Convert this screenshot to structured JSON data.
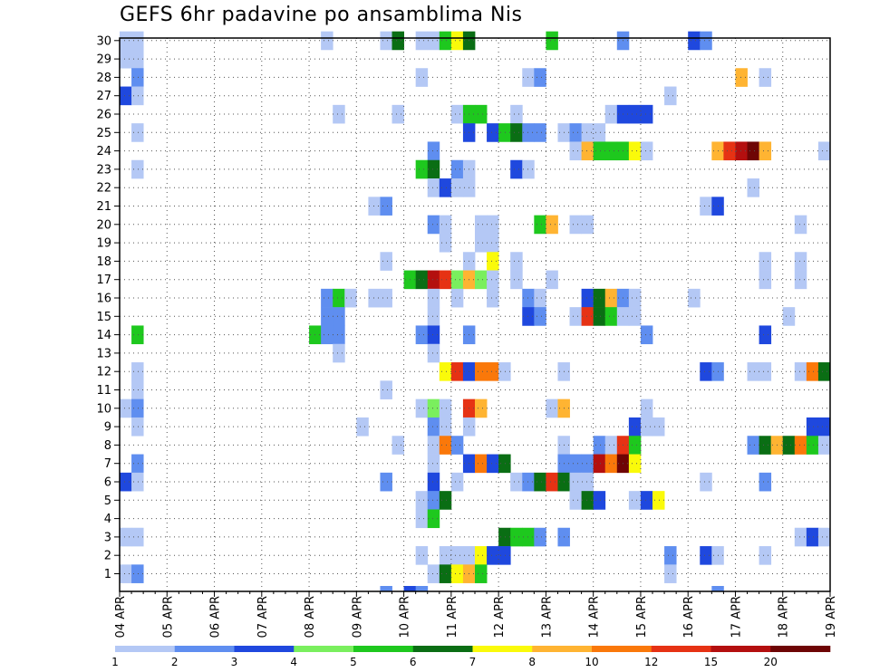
{
  "chart_data": {
    "type": "heatmap",
    "title": "GEFS 6hr padavine po ansamblima Nis",
    "xlabel": "",
    "ylabel": "",
    "members": [
      1,
      30
    ],
    "x_tick_labels": [
      "04 APR",
      "05 APR",
      "06 APR",
      "07 APR",
      "08 APR",
      "09 APR",
      "10 APR",
      "11 APR",
      "12 APR",
      "13 APR",
      "14 APR",
      "15 APR",
      "16 APR",
      "17 APR",
      "18 APR",
      "19 APR"
    ],
    "y_tick_labels": [
      "1",
      "2",
      "3",
      "4",
      "5",
      "6",
      "7",
      "8",
      "9",
      "10",
      "11",
      "12",
      "13",
      "14",
      "15",
      "16",
      "17",
      "18",
      "19",
      "20",
      "21",
      "22",
      "23",
      "24",
      "25",
      "26",
      "27",
      "28",
      "29",
      "30"
    ],
    "steps_per_day": 4,
    "total_steps": 60,
    "legend": {
      "labels": [
        "1",
        "2",
        "3",
        "4",
        "5",
        "6",
        "7",
        "8",
        "10",
        "12",
        "15",
        "20"
      ],
      "colors": [
        "#b4c8f5",
        "#5f8ef0",
        "#1f48de",
        "#7aef5e",
        "#1ec81e",
        "#0a6e14",
        "#fafa0a",
        "#ffb432",
        "#fa780a",
        "#e63214",
        "#b40f0f",
        "#6e0505"
      ]
    },
    "cells": [
      [
        30,
        0,
        1
      ],
      [
        30,
        1,
        1
      ],
      [
        29,
        0,
        1
      ],
      [
        29,
        1,
        1
      ],
      [
        28,
        1,
        2
      ],
      [
        27,
        0,
        3
      ],
      [
        27,
        1,
        1
      ],
      [
        25,
        1,
        1
      ],
      [
        23,
        1,
        1
      ],
      [
        14,
        1,
        5
      ],
      [
        12,
        1,
        1
      ],
      [
        11,
        1,
        1
      ],
      [
        10,
        0,
        1
      ],
      [
        10,
        1,
        2
      ],
      [
        9,
        1,
        1
      ],
      [
        7,
        1,
        2
      ],
      [
        6,
        0,
        3
      ],
      [
        6,
        1,
        1
      ],
      [
        3,
        0,
        1
      ],
      [
        3,
        1,
        1
      ],
      [
        1,
        0,
        1
      ],
      [
        1,
        1,
        2
      ],
      [
        30,
        17,
        1
      ],
      [
        30,
        22,
        1
      ],
      [
        30,
        23,
        6
      ],
      [
        30,
        25,
        1
      ],
      [
        30,
        26,
        1
      ],
      [
        30,
        27,
        5
      ],
      [
        30,
        28,
        7
      ],
      [
        30,
        29,
        6
      ],
      [
        30,
        36,
        5
      ],
      [
        30,
        42,
        2
      ],
      [
        30,
        48,
        3
      ],
      [
        30,
        49,
        2
      ],
      [
        28,
        25,
        1
      ],
      [
        28,
        34,
        1
      ],
      [
        28,
        35,
        2
      ],
      [
        28,
        52,
        8
      ],
      [
        28,
        54,
        1
      ],
      [
        27,
        46,
        1
      ],
      [
        26,
        18,
        1
      ],
      [
        26,
        23,
        1
      ],
      [
        26,
        28,
        1
      ],
      [
        26,
        29,
        5
      ],
      [
        26,
        30,
        5
      ],
      [
        26,
        33,
        1
      ],
      [
        26,
        41,
        1
      ],
      [
        26,
        42,
        3
      ],
      [
        26,
        43,
        3
      ],
      [
        26,
        44,
        3
      ],
      [
        25,
        29,
        3
      ],
      [
        25,
        31,
        3
      ],
      [
        25,
        32,
        5
      ],
      [
        25,
        33,
        6
      ],
      [
        25,
        34,
        2
      ],
      [
        25,
        35,
        2
      ],
      [
        25,
        37,
        1
      ],
      [
        25,
        38,
        2
      ],
      [
        25,
        39,
        1
      ],
      [
        25,
        40,
        1
      ],
      [
        24,
        26,
        2
      ],
      [
        24,
        38,
        1
      ],
      [
        24,
        39,
        8
      ],
      [
        24,
        40,
        5
      ],
      [
        24,
        41,
        5
      ],
      [
        24,
        42,
        5
      ],
      [
        24,
        43,
        7
      ],
      [
        24,
        44,
        1
      ],
      [
        24,
        50,
        8
      ],
      [
        24,
        51,
        10
      ],
      [
        24,
        52,
        11
      ],
      [
        24,
        53,
        12
      ],
      [
        24,
        54,
        8
      ],
      [
        24,
        59,
        1
      ],
      [
        23,
        25,
        5
      ],
      [
        23,
        26,
        6
      ],
      [
        23,
        28,
        2
      ],
      [
        23,
        29,
        1
      ],
      [
        23,
        33,
        3
      ],
      [
        23,
        34,
        1
      ],
      [
        22,
        26,
        1
      ],
      [
        22,
        27,
        3
      ],
      [
        22,
        28,
        1
      ],
      [
        22,
        29,
        1
      ],
      [
        22,
        53,
        1
      ],
      [
        21,
        21,
        1
      ],
      [
        21,
        22,
        2
      ],
      [
        21,
        49,
        1
      ],
      [
        21,
        50,
        3
      ],
      [
        20,
        26,
        2
      ],
      [
        20,
        27,
        1
      ],
      [
        20,
        30,
        1
      ],
      [
        20,
        31,
        1
      ],
      [
        20,
        35,
        5
      ],
      [
        20,
        36,
        8
      ],
      [
        20,
        38,
        1
      ],
      [
        20,
        39,
        1
      ],
      [
        20,
        57,
        1
      ],
      [
        19,
        27,
        1
      ],
      [
        19,
        30,
        1
      ],
      [
        19,
        31,
        1
      ],
      [
        18,
        31,
        7
      ],
      [
        18,
        54,
        1
      ],
      [
        18,
        22,
        1
      ],
      [
        18,
        29,
        1
      ],
      [
        18,
        33,
        1
      ],
      [
        18,
        57,
        1
      ],
      [
        17,
        24,
        5
      ],
      [
        17,
        25,
        6
      ],
      [
        17,
        26,
        11
      ],
      [
        17,
        27,
        10
      ],
      [
        17,
        28,
        4
      ],
      [
        17,
        29,
        8
      ],
      [
        17,
        30,
        4
      ],
      [
        17,
        31,
        1
      ],
      [
        17,
        33,
        1
      ],
      [
        17,
        36,
        1
      ],
      [
        17,
        54,
        1
      ],
      [
        17,
        57,
        1
      ],
      [
        16,
        17,
        2
      ],
      [
        16,
        18,
        5
      ],
      [
        16,
        19,
        1
      ],
      [
        16,
        21,
        1
      ],
      [
        16,
        22,
        1
      ],
      [
        16,
        26,
        1
      ],
      [
        16,
        28,
        1
      ],
      [
        16,
        31,
        1
      ],
      [
        16,
        34,
        2
      ],
      [
        16,
        35,
        1
      ],
      [
        16,
        39,
        3
      ],
      [
        16,
        40,
        6
      ],
      [
        16,
        41,
        8
      ],
      [
        16,
        42,
        2
      ],
      [
        16,
        43,
        1
      ],
      [
        16,
        48,
        1
      ],
      [
        15,
        17,
        2
      ],
      [
        15,
        18,
        2
      ],
      [
        15,
        26,
        1
      ],
      [
        15,
        34,
        3
      ],
      [
        15,
        35,
        2
      ],
      [
        15,
        38,
        1
      ],
      [
        15,
        39,
        10
      ],
      [
        15,
        40,
        6
      ],
      [
        15,
        41,
        5
      ],
      [
        15,
        42,
        1
      ],
      [
        15,
        43,
        1
      ],
      [
        15,
        56,
        1
      ],
      [
        14,
        16,
        5
      ],
      [
        14,
        17,
        2
      ],
      [
        14,
        18,
        2
      ],
      [
        14,
        25,
        2
      ],
      [
        14,
        26,
        3
      ],
      [
        14,
        29,
        2
      ],
      [
        14,
        44,
        2
      ],
      [
        14,
        54,
        3
      ],
      [
        13,
        18,
        1
      ],
      [
        13,
        26,
        1
      ],
      [
        12,
        27,
        7
      ],
      [
        12,
        28,
        10
      ],
      [
        12,
        29,
        3
      ],
      [
        12,
        30,
        9
      ],
      [
        12,
        31,
        9
      ],
      [
        12,
        32,
        1
      ],
      [
        12,
        37,
        1
      ],
      [
        12,
        49,
        3
      ],
      [
        12,
        50,
        2
      ],
      [
        12,
        53,
        1
      ],
      [
        12,
        54,
        1
      ],
      [
        12,
        57,
        1
      ],
      [
        12,
        58,
        9
      ],
      [
        12,
        59,
        6
      ],
      [
        11,
        22,
        1
      ],
      [
        10,
        25,
        1
      ],
      [
        10,
        26,
        4
      ],
      [
        10,
        27,
        1
      ],
      [
        10,
        29,
        10
      ],
      [
        10,
        30,
        8
      ],
      [
        10,
        36,
        1
      ],
      [
        10,
        37,
        8
      ],
      [
        10,
        44,
        1
      ],
      [
        9,
        20,
        1
      ],
      [
        9,
        26,
        2
      ],
      [
        9,
        27,
        1
      ],
      [
        9,
        29,
        1
      ],
      [
        9,
        43,
        3
      ],
      [
        9,
        44,
        1
      ],
      [
        9,
        45,
        1
      ],
      [
        9,
        58,
        3
      ],
      [
        9,
        59,
        3
      ],
      [
        8,
        23,
        1
      ],
      [
        8,
        26,
        1
      ],
      [
        8,
        27,
        9
      ],
      [
        8,
        28,
        2
      ],
      [
        8,
        37,
        1
      ],
      [
        8,
        40,
        2
      ],
      [
        8,
        41,
        1
      ],
      [
        8,
        42,
        10
      ],
      [
        8,
        43,
        5
      ],
      [
        8,
        53,
        2
      ],
      [
        8,
        54,
        6
      ],
      [
        8,
        55,
        8
      ],
      [
        8,
        56,
        6
      ],
      [
        8,
        57,
        9
      ],
      [
        8,
        58,
        5
      ],
      [
        8,
        59,
        1
      ],
      [
        7,
        26,
        1
      ],
      [
        7,
        29,
        3
      ],
      [
        7,
        30,
        9
      ],
      [
        7,
        31,
        3
      ],
      [
        7,
        32,
        6
      ],
      [
        7,
        37,
        2
      ],
      [
        7,
        38,
        2
      ],
      [
        7,
        39,
        2
      ],
      [
        7,
        40,
        11
      ],
      [
        7,
        41,
        9
      ],
      [
        7,
        42,
        12
      ],
      [
        7,
        43,
        7
      ],
      [
        6,
        22,
        2
      ],
      [
        6,
        26,
        3
      ],
      [
        6,
        28,
        1
      ],
      [
        6,
        33,
        1
      ],
      [
        6,
        34,
        2
      ],
      [
        6,
        35,
        6
      ],
      [
        6,
        36,
        10
      ],
      [
        6,
        37,
        6
      ],
      [
        6,
        38,
        1
      ],
      [
        6,
        39,
        1
      ],
      [
        6,
        49,
        1
      ],
      [
        6,
        54,
        2
      ],
      [
        5,
        25,
        1
      ],
      [
        5,
        26,
        2
      ],
      [
        5,
        27,
        6
      ],
      [
        5,
        38,
        1
      ],
      [
        5,
        39,
        6
      ],
      [
        5,
        40,
        3
      ],
      [
        5,
        43,
        1
      ],
      [
        5,
        44,
        3
      ],
      [
        5,
        45,
        7
      ],
      [
        4,
        25,
        1
      ],
      [
        4,
        26,
        5
      ],
      [
        3,
        32,
        6
      ],
      [
        3,
        33,
        5
      ],
      [
        3,
        34,
        5
      ],
      [
        3,
        35,
        2
      ],
      [
        3,
        37,
        2
      ],
      [
        3,
        57,
        1
      ],
      [
        3,
        58,
        3
      ],
      [
        3,
        59,
        1
      ],
      [
        2,
        25,
        1
      ],
      [
        2,
        27,
        1
      ],
      [
        2,
        28,
        1
      ],
      [
        2,
        29,
        1
      ],
      [
        2,
        30,
        7
      ],
      [
        2,
        31,
        3
      ],
      [
        2,
        32,
        3
      ],
      [
        2,
        46,
        2
      ],
      [
        2,
        49,
        3
      ],
      [
        2,
        50,
        1
      ],
      [
        2,
        54,
        1
      ],
      [
        1,
        26,
        1
      ],
      [
        1,
        27,
        6
      ],
      [
        1,
        28,
        7
      ],
      [
        1,
        29,
        8
      ],
      [
        1,
        30,
        5
      ],
      [
        1,
        46,
        1
      ],
      [
        0,
        22,
        2
      ],
      [
        0,
        24,
        3
      ],
      [
        0,
        25,
        2
      ],
      [
        0,
        50,
        2
      ]
    ]
  }
}
